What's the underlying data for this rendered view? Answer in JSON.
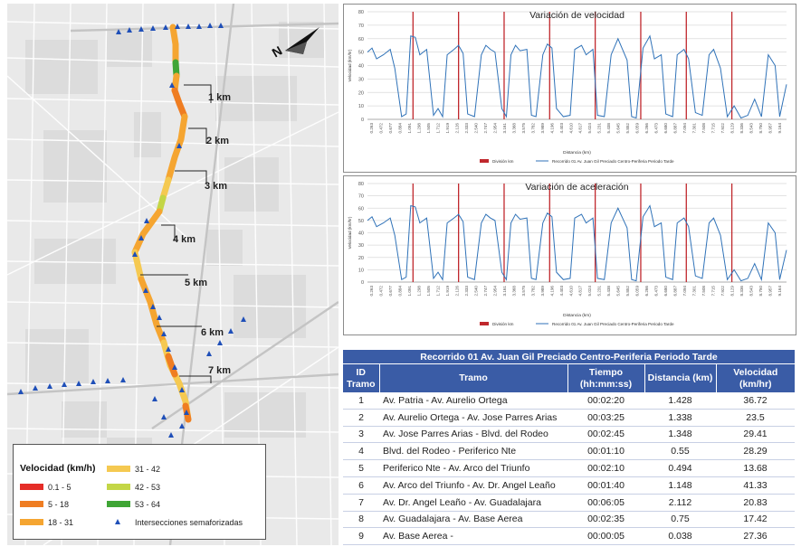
{
  "map": {
    "north_label": "N",
    "km_markers": [
      "1 km",
      "2 km",
      "3 km",
      "4 km",
      "5 km",
      "6 km",
      "7 km"
    ]
  },
  "legend": {
    "title": "Velocidad (km/h)",
    "items": [
      {
        "label": "0.1 - 5",
        "color": "#e52d27"
      },
      {
        "label": "5 - 18",
        "color": "#ef7d22"
      },
      {
        "label": "18 - 31",
        "color": "#f5a531"
      },
      {
        "label": "31 - 42",
        "color": "#f5c951"
      },
      {
        "label": "42 - 53",
        "color": "#c3d646"
      },
      {
        "label": "53 - 64",
        "color": "#3fa535"
      }
    ],
    "signal_label": "Intersecciones semaforizadas",
    "signal_color": "#1f4fb8"
  },
  "chart_data": [
    {
      "type": "line",
      "title": "Variación de velocidad",
      "xlabel": "Distancia (km)",
      "ylabel": "Velocidad (km/hr)",
      "ylim": [
        0,
        80
      ],
      "yticks": [
        0,
        10,
        20,
        30,
        40,
        50,
        60,
        70,
        80
      ],
      "xlim": [
        0,
        9.2
      ],
      "xticks": [
        "0.263",
        "0.472",
        "0.677",
        "0.884",
        "1.091",
        "1.298",
        "1.505",
        "1.712",
        "1.919",
        "2.126",
        "2.333",
        "2.540",
        "2.747",
        "2.954",
        "3.161",
        "3.368",
        "3.575",
        "3.782",
        "3.989",
        "4.196",
        "4.403",
        "4.610",
        "4.817",
        "5.024",
        "5.231",
        "5.438",
        "5.645",
        "5.852",
        "6.059",
        "6.266",
        "6.473",
        "6.680",
        "6.887",
        "7.094",
        "7.301",
        "7.508",
        "7.715",
        "7.922",
        "8.129",
        "8.336",
        "8.543",
        "8.750",
        "8.957",
        "9.164"
      ],
      "grid": true,
      "legend_position": "bottom",
      "division_label": "División km",
      "division_color": "#c0282d",
      "division_x": [
        1,
        2,
        3,
        4,
        5,
        6,
        7,
        8
      ],
      "series": [
        {
          "name": "Recorrido 01 Av. Juan Gil Preciado Centro-Periferia Periodo Tarde",
          "color": "#2f72b8",
          "x": [
            0,
            0.1,
            0.2,
            0.35,
            0.5,
            0.6,
            0.75,
            0.85,
            0.95,
            1.05,
            1.15,
            1.3,
            1.45,
            1.55,
            1.65,
            1.75,
            1.9,
            2.0,
            2.1,
            2.2,
            2.35,
            2.5,
            2.6,
            2.7,
            2.8,
            2.95,
            3.05,
            3.15,
            3.25,
            3.35,
            3.5,
            3.6,
            3.7,
            3.85,
            3.95,
            4.05,
            4.15,
            4.3,
            4.45,
            4.55,
            4.7,
            4.8,
            4.95,
            5.05,
            5.2,
            5.35,
            5.5,
            5.6,
            5.7,
            5.8,
            5.9,
            6.05,
            6.2,
            6.3,
            6.45,
            6.55,
            6.7,
            6.8,
            6.95,
            7.05,
            7.2,
            7.35,
            7.5,
            7.6,
            7.75,
            7.9,
            8.05,
            8.2,
            8.35,
            8.5,
            8.65,
            8.8,
            8.95,
            9.05,
            9.2
          ],
          "values": [
            50,
            53,
            45,
            48,
            52,
            38,
            2,
            4,
            62,
            61,
            48,
            52,
            3,
            8,
            2,
            48,
            52,
            55,
            49,
            4,
            2,
            48,
            55,
            52,
            50,
            8,
            2,
            48,
            55,
            51,
            52,
            3,
            2,
            48,
            56,
            53,
            8,
            2,
            3,
            52,
            55,
            48,
            52,
            3,
            2,
            48,
            60,
            52,
            44,
            2,
            1,
            53,
            62,
            45,
            48,
            4,
            2,
            48,
            52,
            45,
            5,
            3,
            48,
            52,
            38,
            2,
            10,
            1,
            3,
            15,
            2,
            48,
            40,
            2,
            26
          ]
        }
      ]
    },
    {
      "type": "line",
      "title": "Variación de aceleración",
      "xlabel": "Distancia (km)",
      "ylabel": "Velocidad (km/hr)",
      "ylim": [
        0,
        80
      ],
      "yticks": [
        0,
        10,
        20,
        30,
        40,
        50,
        60,
        70,
        80
      ],
      "xlim": [
        0,
        9.2
      ],
      "xticks": [
        "0.263",
        "0.472",
        "0.677",
        "0.884",
        "1.091",
        "1.298",
        "1.505",
        "1.712",
        "1.919",
        "2.126",
        "2.333",
        "2.540",
        "2.747",
        "2.954",
        "3.161",
        "3.368",
        "3.575",
        "3.782",
        "3.989",
        "4.196",
        "4.403",
        "4.610",
        "4.817",
        "5.024",
        "5.231",
        "5.438",
        "5.645",
        "5.852",
        "6.059",
        "6.266",
        "6.473",
        "6.680",
        "6.887",
        "7.094",
        "7.301",
        "7.508",
        "7.715",
        "7.922",
        "8.129",
        "8.336",
        "8.543",
        "8.750",
        "8.957",
        "9.164"
      ],
      "grid": true,
      "legend_position": "bottom",
      "division_label": "División km",
      "division_color": "#c0282d",
      "division_x": [
        1,
        2,
        3,
        4,
        5,
        6,
        7,
        8
      ],
      "series": [
        {
          "name": "Recorrido 01 Av. Juan Gil Preciado Centro-Periferia Periodo Tarde",
          "color": "#2f72b8",
          "x": [
            0,
            0.1,
            0.2,
            0.35,
            0.5,
            0.6,
            0.75,
            0.85,
            0.95,
            1.05,
            1.15,
            1.3,
            1.45,
            1.55,
            1.65,
            1.75,
            1.9,
            2.0,
            2.1,
            2.2,
            2.35,
            2.5,
            2.6,
            2.7,
            2.8,
            2.95,
            3.05,
            3.15,
            3.25,
            3.35,
            3.5,
            3.6,
            3.7,
            3.85,
            3.95,
            4.05,
            4.15,
            4.3,
            4.45,
            4.55,
            4.7,
            4.8,
            4.95,
            5.05,
            5.2,
            5.35,
            5.5,
            5.6,
            5.7,
            5.8,
            5.9,
            6.05,
            6.2,
            6.3,
            6.45,
            6.55,
            6.7,
            6.8,
            6.95,
            7.05,
            7.2,
            7.35,
            7.5,
            7.6,
            7.75,
            7.9,
            8.05,
            8.2,
            8.35,
            8.5,
            8.65,
            8.8,
            8.95,
            9.05,
            9.2
          ],
          "values": [
            50,
            53,
            45,
            48,
            52,
            38,
            2,
            4,
            62,
            61,
            48,
            52,
            3,
            8,
            2,
            48,
            52,
            55,
            49,
            4,
            2,
            48,
            55,
            52,
            50,
            8,
            2,
            48,
            55,
            51,
            52,
            3,
            2,
            48,
            56,
            53,
            8,
            2,
            3,
            52,
            55,
            48,
            52,
            3,
            2,
            48,
            60,
            52,
            44,
            2,
            1,
            53,
            62,
            45,
            48,
            4,
            2,
            48,
            52,
            45,
            5,
            3,
            48,
            52,
            38,
            2,
            10,
            1,
            3,
            15,
            2,
            48,
            40,
            2,
            26
          ]
        }
      ]
    },
    {
      "type": "table",
      "title": "Recorrido 01 Av. Juan Gil Preciado Centro-Periferia Periodo Tarde",
      "columns": [
        "ID Tramo",
        "Tramo",
        "Tiempo (hh:mm:ss)",
        "Distancia (km)",
        "Velocidad (km/hr)"
      ],
      "rows": [
        [
          "1",
          "Av. Patria - Av. Aurelio Ortega",
          "00:02:20",
          "1.428",
          "36.72"
        ],
        [
          "2",
          "Av. Aurelio Ortega - Av. Jose Parres Arias",
          "00:03:25",
          "1.338",
          "23.5"
        ],
        [
          "3",
          "Av. Jose Parres Arias - Blvd. del Rodeo",
          "00:02:45",
          "1.348",
          "29.41"
        ],
        [
          "4",
          "Blvd. del Rodeo - Periferico Nte",
          "00:01:10",
          "0.55",
          "28.29"
        ],
        [
          "5",
          "Periferico Nte - Av. Arco del Triunfo",
          "00:02:10",
          "0.494",
          "13.68"
        ],
        [
          "6",
          "Av. Arco del Triunfo - Av. Dr. Angel Leaño",
          "00:01:40",
          "1.148",
          "41.33"
        ],
        [
          "7",
          "Av. Dr. Angel Leaño - Av. Guadalajara",
          "00:06:05",
          "2.112",
          "20.83"
        ],
        [
          "8",
          "Av. Guadalajara - Av. Base Aerea",
          "00:02:35",
          "0.75",
          "17.42"
        ],
        [
          "9",
          "Av. Base Aerea -",
          "00:00:05",
          "0.038",
          "27.36"
        ]
      ]
    }
  ]
}
